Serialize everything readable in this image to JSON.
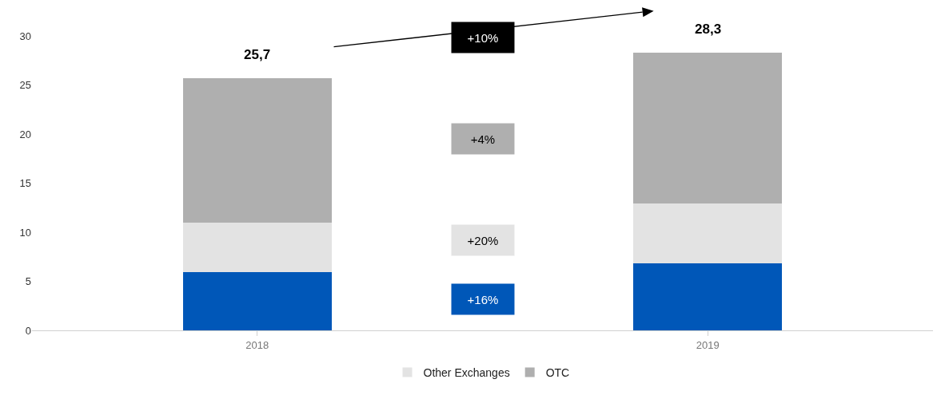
{
  "chart_data": {
    "type": "bar",
    "stacked": true,
    "categories": [
      "2018",
      "2019"
    ],
    "series": [
      {
        "color": "#0057b8",
        "values": [
          5.9,
          6.8
        ]
      },
      {
        "name": "Other Exchanges",
        "color": "#e3e3e3",
        "values": [
          5.1,
          6.1
        ]
      },
      {
        "name": "OTC",
        "color": "#afafaf",
        "values": [
          14.7,
          15.4
        ]
      }
    ],
    "totals": [
      "25,7",
      "28,3"
    ],
    "annotations": [
      "+10%",
      "+4%",
      "+20%",
      "+16%"
    ],
    "ylim": [
      0,
      30
    ],
    "yticks": [
      0,
      5,
      10,
      15,
      20,
      25,
      30
    ],
    "grid": false,
    "legend": "bottom"
  }
}
